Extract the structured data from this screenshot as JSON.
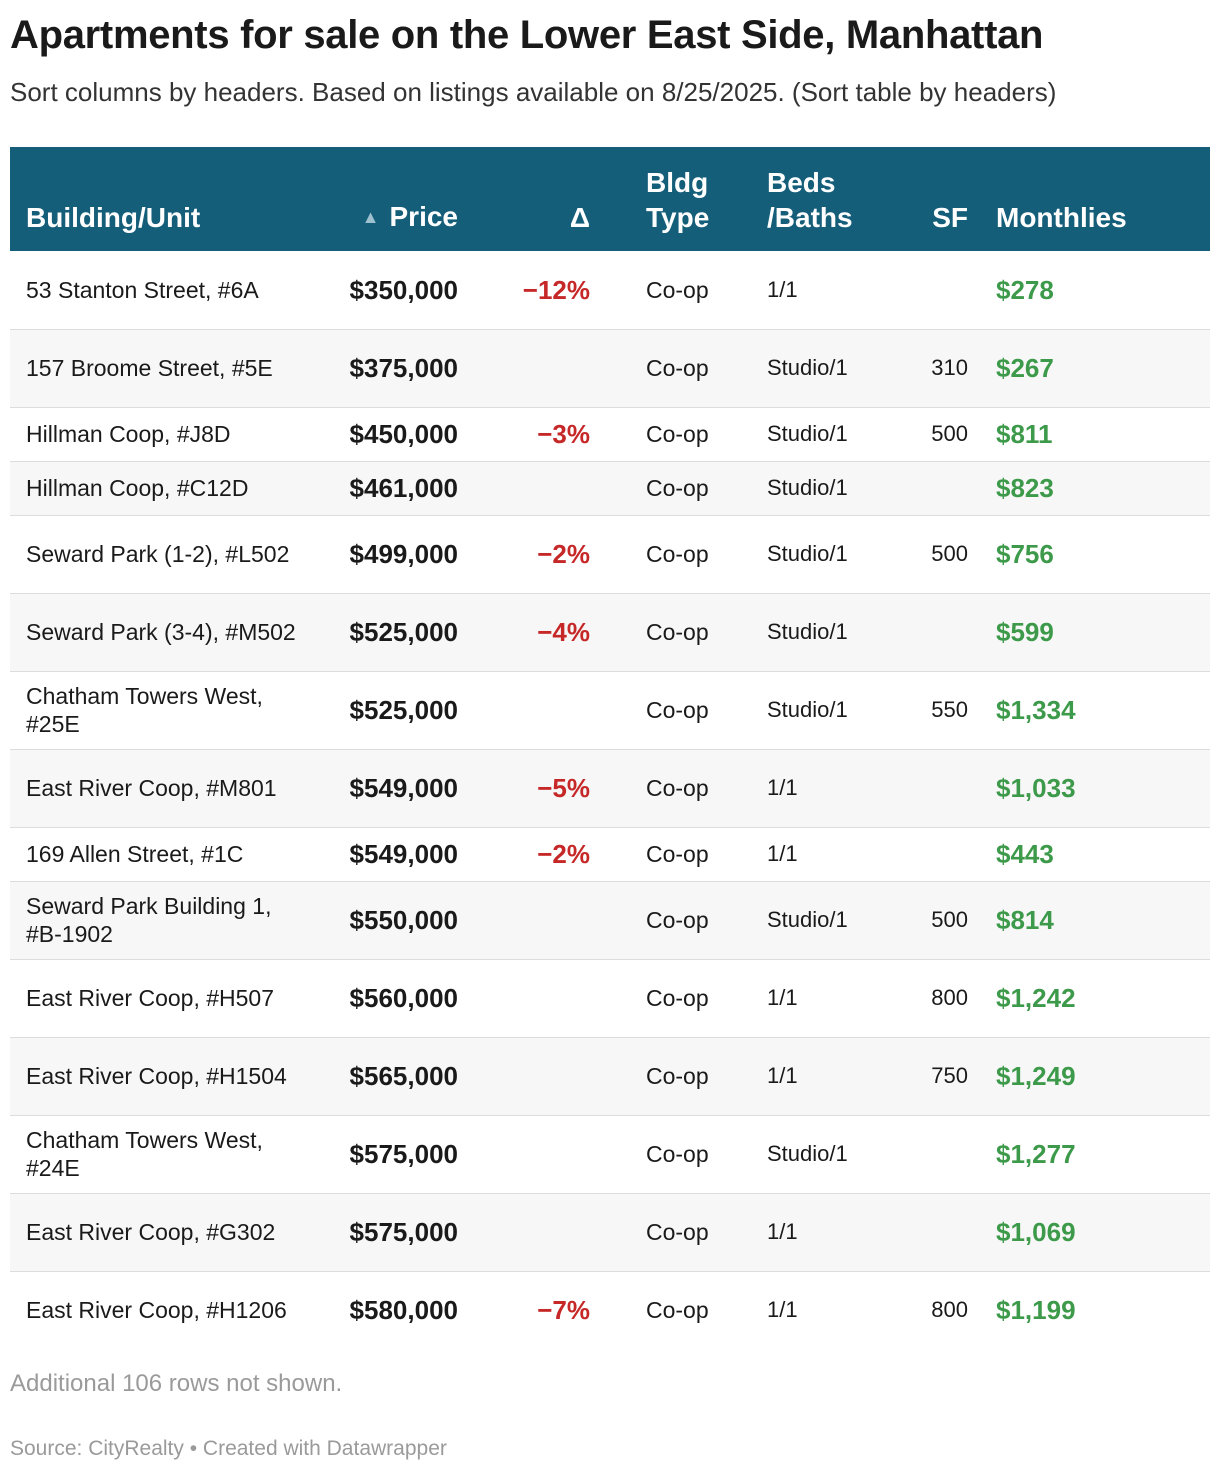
{
  "title": "Apartments for sale on the Lower East Side, Manhattan",
  "subtitle": "Sort columns by headers. Based on listings available on 8/25/2025. (Sort table by headers)",
  "colors": {
    "header_bg": "#155e7a",
    "negative": "#c62828",
    "monthlies": "#3d9a4a"
  },
  "table": {
    "sort_icon": "sort-ascending-icon",
    "sort_glyph": "▲",
    "headers": {
      "building": "Building/Unit",
      "price": "Price",
      "delta": "Δ",
      "type_line1": "Bldg",
      "type_line2": "Type",
      "beds_line1": "Beds",
      "beds_line2": "/Baths",
      "sf": "SF",
      "monthlies": "Monthlies"
    },
    "rows": [
      {
        "building": "53 Stanton Street, #6A",
        "price": "$350,000",
        "delta": "−12%",
        "type": "Co-op",
        "beds_baths": "1/1",
        "sf": "",
        "monthlies": "$278"
      },
      {
        "building": "157 Broome Street, #5E",
        "price": "$375,000",
        "delta": "",
        "type": "Co-op",
        "beds_baths": "Studio/1",
        "sf": "310",
        "monthlies": "$267"
      },
      {
        "building": "Hillman Coop, #J8D",
        "price": "$450,000",
        "delta": "−3%",
        "type": "Co-op",
        "beds_baths": "Studio/1",
        "sf": "500",
        "monthlies": "$811"
      },
      {
        "building": "Hillman Coop, #C12D",
        "price": "$461,000",
        "delta": "",
        "type": "Co-op",
        "beds_baths": "Studio/1",
        "sf": "",
        "monthlies": "$823"
      },
      {
        "building": "Seward Park (1-2), #L502",
        "price": "$499,000",
        "delta": "−2%",
        "type": "Co-op",
        "beds_baths": "Studio/1",
        "sf": "500",
        "monthlies": "$756"
      },
      {
        "building": "Seward Park (3-4), #M502",
        "price": "$525,000",
        "delta": "−4%",
        "type": "Co-op",
        "beds_baths": "Studio/1",
        "sf": "",
        "monthlies": "$599"
      },
      {
        "building": "Chatham Towers West, #25E",
        "price": "$525,000",
        "delta": "",
        "type": "Co-op",
        "beds_baths": "Studio/1",
        "sf": "550",
        "monthlies": "$1,334"
      },
      {
        "building": "East River Coop, #M801",
        "price": "$549,000",
        "delta": "−5%",
        "type": "Co-op",
        "beds_baths": "1/1",
        "sf": "",
        "monthlies": "$1,033"
      },
      {
        "building": "169 Allen Street, #1C",
        "price": "$549,000",
        "delta": "−2%",
        "type": "Co-op",
        "beds_baths": "1/1",
        "sf": "",
        "monthlies": "$443"
      },
      {
        "building": "Seward Park Building 1, #B-1902",
        "price": "$550,000",
        "delta": "",
        "type": "Co-op",
        "beds_baths": "Studio/1",
        "sf": "500",
        "monthlies": "$814"
      },
      {
        "building": "East River Coop, #H507",
        "price": "$560,000",
        "delta": "",
        "type": "Co-op",
        "beds_baths": "1/1",
        "sf": "800",
        "monthlies": "$1,242"
      },
      {
        "building": "East River Coop, #H1504",
        "price": "$565,000",
        "delta": "",
        "type": "Co-op",
        "beds_baths": "1/1",
        "sf": "750",
        "monthlies": "$1,249"
      },
      {
        "building": "Chatham Towers West, #24E",
        "price": "$575,000",
        "delta": "",
        "type": "Co-op",
        "beds_baths": "Studio/1",
        "sf": "",
        "monthlies": "$1,277"
      },
      {
        "building": "East River Coop, #G302",
        "price": "$575,000",
        "delta": "",
        "type": "Co-op",
        "beds_baths": "1/1",
        "sf": "",
        "monthlies": "$1,069"
      },
      {
        "building": "East River Coop, #H1206",
        "price": "$580,000",
        "delta": "−7%",
        "type": "Co-op",
        "beds_baths": "1/1",
        "sf": "800",
        "monthlies": "$1,199"
      }
    ]
  },
  "chart_data": {
    "type": "table",
    "title": "Apartments for sale on the Lower East Side, Manhattan",
    "columns": [
      "Building/Unit",
      "Price",
      "Δ",
      "Bldg Type",
      "Beds /Baths",
      "SF",
      "Monthlies"
    ],
    "sorted_by": "Price",
    "sort_order": "ascending",
    "rows": [
      [
        "53 Stanton Street, #6A",
        "$350,000",
        "−12%",
        "Co-op",
        "1/1",
        "",
        "$278"
      ],
      [
        "157 Broome Street, #5E",
        "$375,000",
        "",
        "Co-op",
        "Studio/1",
        "310",
        "$267"
      ],
      [
        "Hillman Coop, #J8D",
        "$450,000",
        "−3%",
        "Co-op",
        "Studio/1",
        "500",
        "$811"
      ],
      [
        "Hillman Coop, #C12D",
        "$461,000",
        "",
        "Co-op",
        "Studio/1",
        "",
        "$823"
      ],
      [
        "Seward Park (1-2), #L502",
        "$499,000",
        "−2%",
        "Co-op",
        "Studio/1",
        "500",
        "$756"
      ],
      [
        "Seward Park (3-4), #M502",
        "$525,000",
        "−4%",
        "Co-op",
        "Studio/1",
        "",
        "$599"
      ],
      [
        "Chatham Towers West, #25E",
        "$525,000",
        "",
        "Co-op",
        "Studio/1",
        "550",
        "$1,334"
      ],
      [
        "East River Coop, #M801",
        "$549,000",
        "−5%",
        "Co-op",
        "1/1",
        "",
        "$1,033"
      ],
      [
        "169 Allen Street, #1C",
        "$549,000",
        "−2%",
        "Co-op",
        "1/1",
        "",
        "$443"
      ],
      [
        "Seward Park Building 1, #B-1902",
        "$550,000",
        "",
        "Co-op",
        "Studio/1",
        "500",
        "$814"
      ],
      [
        "East River Coop, #H507",
        "$560,000",
        "",
        "Co-op",
        "1/1",
        "800",
        "$1,242"
      ],
      [
        "East River Coop, #H1504",
        "$565,000",
        "",
        "Co-op",
        "1/1",
        "750",
        "$1,249"
      ],
      [
        "Chatham Towers West, #24E",
        "$575,000",
        "",
        "Co-op",
        "Studio/1",
        "",
        "$1,277"
      ],
      [
        "East River Coop, #G302",
        "$575,000",
        "",
        "Co-op",
        "1/1",
        "",
        "$1,069"
      ],
      [
        "East River Coop, #H1206",
        "$580,000",
        "−7%",
        "Co-op",
        "1/1",
        "800",
        "$1,199"
      ]
    ]
  },
  "footer": {
    "note": "Additional 106 rows not shown.",
    "source": "Source: CityRealty • Created with Datawrapper"
  }
}
